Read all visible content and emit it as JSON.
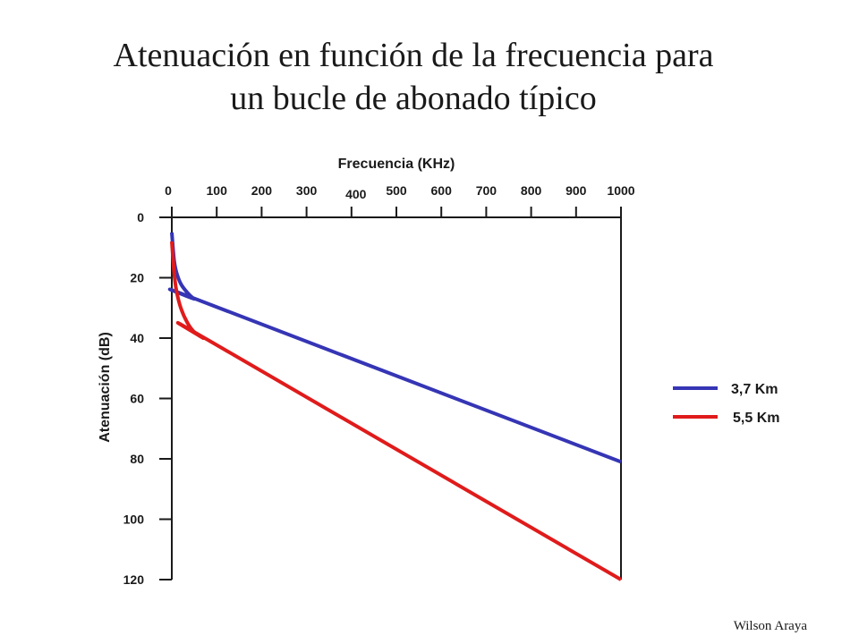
{
  "title_lines": [
    "Atenuación en función de la frecuencia para",
    "un bucle de abonado típico"
  ],
  "author": "Wilson Araya",
  "chart_data": {
    "type": "line",
    "xlabel": "Frecuencia (KHz)",
    "ylabel": "Atenuación (dB)",
    "xlim": [
      0,
      1000
    ],
    "ylim": [
      0,
      120
    ],
    "y_inverted": true,
    "x_axis_position": "top",
    "grid": false,
    "legend_position": "right",
    "x_ticks": [
      0,
      100,
      200,
      300,
      400,
      500,
      600,
      700,
      800,
      900,
      1000
    ],
    "x_tick_labels": [
      "0",
      "100",
      "200",
      "300",
      "400",
      "500",
      "600",
      "700",
      "800",
      "900",
      "1000"
    ],
    "y_ticks": [
      0,
      20,
      40,
      60,
      80,
      100,
      120
    ],
    "y_tick_labels": [
      "0",
      "20",
      "40",
      "60",
      "80",
      "100",
      "120"
    ],
    "series": [
      {
        "name": "3,7 Km",
        "color": "#3535b5",
        "x": [
          0,
          5,
          10,
          20,
          35,
          50,
          70,
          1000
        ],
        "y": [
          5,
          14,
          18,
          22,
          25,
          27,
          28,
          81
        ]
      },
      {
        "name": "5,5 Km",
        "color": "#e01b1b",
        "x": [
          0,
          5,
          10,
          20,
          35,
          50,
          70,
          85,
          1000
        ],
        "y": [
          8,
          18,
          24,
          30,
          35,
          38,
          40,
          41,
          120
        ]
      }
    ]
  }
}
